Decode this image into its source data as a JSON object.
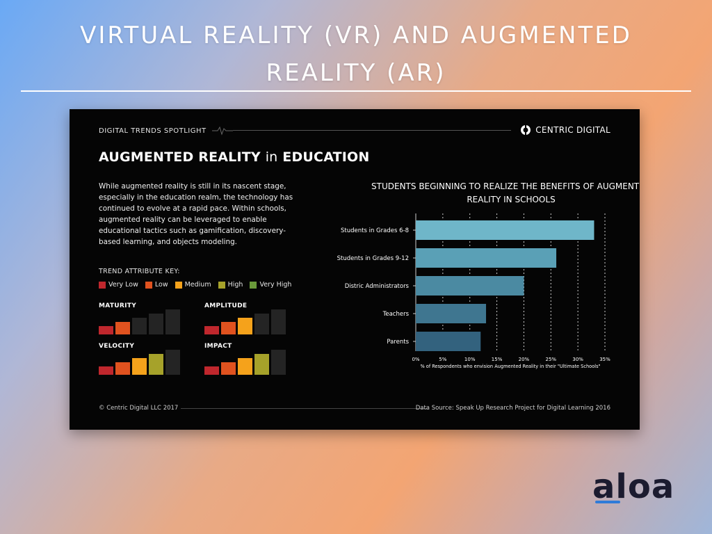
{
  "slide": {
    "title_line1": "VIRTUAL REALITY (VR) AND AUGMENTED",
    "title_line2": "REALITY (AR)",
    "logo_text": "aloa"
  },
  "card": {
    "spotlight_label": "DIGITAL TRENDS SPOTLIGHT",
    "brand_name": "CENTRIC DIGITAL",
    "headline_part1": "AUGMENTED REALITY",
    "headline_part2": "in",
    "headline_part3": "EDUCATION",
    "intro_text": "While augmented reality is still in its nascent stage, especially in the education realm, the technology has continued to evolve at a rapid pace. Within schools, augmented reality can be leveraged to enable educational tactics such as gamification, discovery-based learning, and objects modeling.",
    "key_title": "TREND ATTRIBUTE KEY:",
    "key_items": [
      {
        "label": "Very Low",
        "color": "#c0272d"
      },
      {
        "label": "Low",
        "color": "#e0521f"
      },
      {
        "label": "Medium",
        "color": "#f5a21b"
      },
      {
        "label": "High",
        "color": "#a6a22a"
      },
      {
        "label": "Very High",
        "color": "#6a9a3a"
      }
    ],
    "metrics": [
      {
        "label": "MATURITY",
        "level": 2
      },
      {
        "label": "AMPLITUDE",
        "level": 3
      },
      {
        "label": "VELOCITY",
        "level": 4
      },
      {
        "label": "IMPACT",
        "level": 4
      }
    ],
    "footer_left": "© Centric Digital LLC 2017",
    "footer_right": "Data Source: Speak Up Research Project for Digital Learning 2016"
  },
  "chart_data": {
    "type": "bar",
    "orientation": "horizontal",
    "title_line1": "STUDENTS BEGINNING TO REALIZE THE BENEFITS OF AUGMENTED",
    "title_line2": "REALITY IN SCHOOLS",
    "categories": [
      "Students in Grades 6-8",
      "Students in Grades 9-12",
      "Distric Administrators",
      "Teachers",
      "Parents"
    ],
    "values": [
      33,
      26,
      20,
      13,
      12
    ],
    "xlim": [
      0,
      35
    ],
    "xticks": [
      "0%",
      "5%",
      "10%",
      "15%",
      "20%",
      "25%",
      "30%",
      "35%"
    ],
    "xlabel": "% of Respondents who envision Augmented Reality in their \"Ultimate Schools\"",
    "grid": "vertical dotted",
    "bar_colors": [
      "#6fb6c9",
      "#5aa0b6",
      "#4b8aa2",
      "#3f7690",
      "#33627e"
    ]
  }
}
